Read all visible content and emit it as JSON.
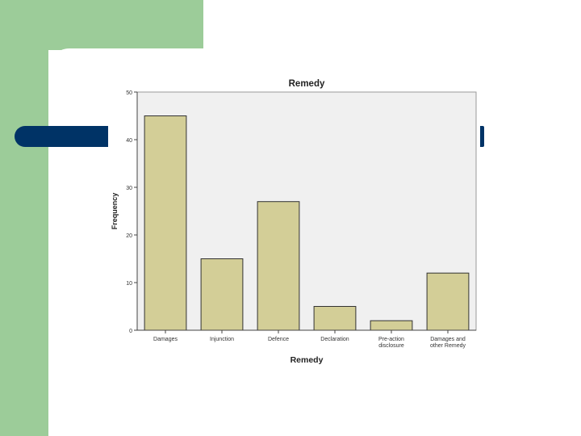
{
  "colors": {
    "green": "#9ccc99",
    "navy": "#003366",
    "plot_bg": "#f0f0f0",
    "bar_fill": "#d3ce97",
    "bar_stroke": "#333333"
  },
  "chart_data": {
    "type": "bar",
    "title": "Remedy",
    "xlabel": "Remedy",
    "ylabel": "Frequency",
    "categories": [
      "Damages",
      "Injunction",
      "Defence",
      "Declaration",
      "Pre-action disclosure",
      "Damages and other Remedy"
    ],
    "category_lines": [
      [
        "Damages"
      ],
      [
        "Injunction"
      ],
      [
        "Defence"
      ],
      [
        "Declaration"
      ],
      [
        "Pre-action",
        "disclosure"
      ],
      [
        "Damages and",
        "other Remedy"
      ]
    ],
    "values": [
      45,
      15,
      27,
      5,
      2,
      12
    ],
    "ylim": [
      0,
      50
    ],
    "yticks": [
      0,
      10,
      20,
      30,
      40,
      50
    ],
    "grid": false,
    "legend": "none"
  }
}
